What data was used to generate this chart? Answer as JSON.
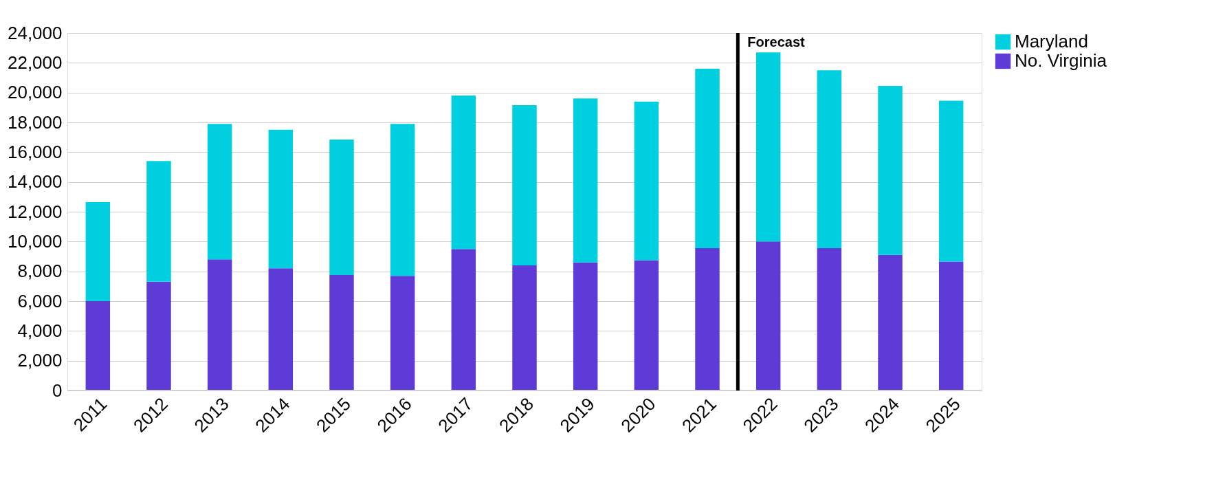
{
  "chart_data": {
    "type": "bar",
    "stacked": true,
    "categories": [
      "2011",
      "2012",
      "2013",
      "2014",
      "2015",
      "2016",
      "2017",
      "2018",
      "2019",
      "2020",
      "2021",
      "2022",
      "2023",
      "2024",
      "2025"
    ],
    "series": [
      {
        "name": "No. Virginia",
        "color": "#5e3ad6",
        "values": [
          6000,
          7300,
          8800,
          8200,
          7750,
          7700,
          9500,
          8400,
          8600,
          8750,
          9550,
          10000,
          9550,
          9100,
          8650
        ]
      },
      {
        "name": "Maryland",
        "color": "#00cfe0",
        "values": [
          6650,
          8100,
          9100,
          9300,
          9100,
          10200,
          10300,
          10750,
          11000,
          10650,
          12050,
          12700,
          11950,
          11350,
          10800
        ]
      }
    ],
    "ylim": [
      0,
      24000
    ],
    "yticks": [
      {
        "value": 0,
        "label": "0"
      },
      {
        "value": 2000,
        "label": "2,000"
      },
      {
        "value": 4000,
        "label": "4,000"
      },
      {
        "value": 6000,
        "label": "6,000"
      },
      {
        "value": 8000,
        "label": "8,000"
      },
      {
        "value": 10000,
        "label": "10,000"
      },
      {
        "value": 12000,
        "label": "12,000"
      },
      {
        "value": 14000,
        "label": "14,000"
      },
      {
        "value": 16000,
        "label": "16,000"
      },
      {
        "value": 18000,
        "label": "18,000"
      },
      {
        "value": 20000,
        "label": "20,000"
      },
      {
        "value": 22000,
        "label": "22,000"
      },
      {
        "value": 24000,
        "label": "24,000"
      }
    ],
    "grid": "y",
    "legend": "right",
    "ref_lines": [
      {
        "axis": "x",
        "value": "2022",
        "label": "Forecast",
        "color": "#000000"
      }
    ]
  }
}
